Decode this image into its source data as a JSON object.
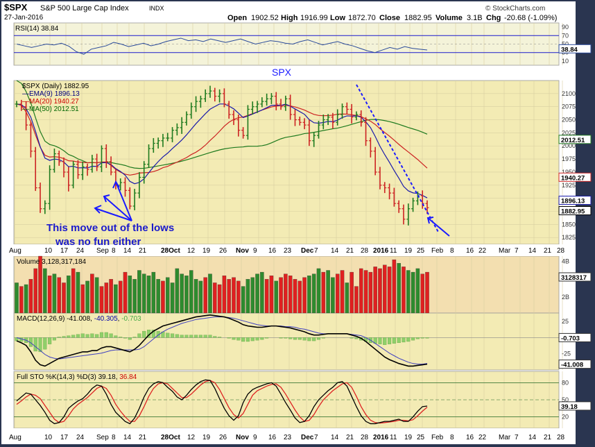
{
  "chart_data": {
    "type": "candlestick",
    "header": {
      "symbol": "$SPX",
      "name": "S&P 500 Large Cap Index",
      "exchange": "INDX",
      "date": "27-Jan-2016",
      "open_label": "Open",
      "open": "1902.52",
      "high_label": "High",
      "high": "1916.99",
      "low_label": "Low",
      "low": "1872.70",
      "close_label": "Close",
      "close": "1882.95",
      "volume_label": "Volume",
      "volume": "3.1B",
      "chg_label": "Chg",
      "chg": "-20.68 (-1.09%)",
      "brand": "© StockCharts.com"
    },
    "x_axis": {
      "labels": [
        "Aug",
        "10",
        "17",
        "24",
        "Sep",
        "8",
        "14",
        "21",
        "28Oct",
        "12",
        "19",
        "26",
        "Nov",
        "9",
        "16",
        "23",
        "Dec",
        "7",
        "14",
        "21",
        "28",
        "2016",
        "11",
        "19",
        "25",
        "Feb",
        "8",
        "16",
        "22",
        "Mar",
        "7",
        "14",
        "21",
        "28"
      ],
      "bold": [
        "28Oct",
        "Nov",
        "Dec",
        "2016"
      ],
      "label_x": [
        13,
        64,
        87,
        110,
        139,
        161,
        178,
        200,
        232,
        270,
        292,
        316,
        340,
        365,
        387,
        409,
        434,
        453,
        477,
        499,
        520,
        538,
        562,
        583,
        601,
        622,
        649,
        672,
        690,
        719,
        742,
        762,
        784,
        803
      ]
    },
    "rsi": {
      "label": "RSI(14)",
      "value": "38.84",
      "ticks": [
        "90",
        "70",
        "50",
        "30",
        "10"
      ],
      "tick_values": [
        90,
        70,
        50,
        30,
        10
      ],
      "levels": [
        70,
        30
      ],
      "tag": "38.84",
      "series": [
        50,
        46,
        42,
        46,
        50,
        48,
        52,
        45,
        32,
        26,
        38,
        42,
        46,
        54,
        50,
        44,
        48,
        52,
        46,
        50,
        56,
        60,
        64,
        58,
        60,
        56,
        62,
        58,
        54,
        58,
        62,
        56,
        50,
        54,
        58,
        56,
        52,
        50,
        56,
        60,
        54,
        48,
        52,
        56,
        50,
        46,
        40,
        34,
        30,
        36,
        42,
        38,
        44,
        40,
        38,
        36
      ]
    },
    "price": {
      "symbol_label": "$SPX (Daily)",
      "last": "1882.95",
      "overlay_text": "SPX",
      "ema9_label": "EMA(9)",
      "ema9": "1896.13",
      "ma20_label": "MA(20)",
      "ma20": "1940.27",
      "ma50_label": "MA(50)",
      "ma50": "2012.51",
      "ticks": [
        "2100",
        "2075",
        "2050",
        "2025",
        "2000",
        "1975",
        "1950",
        "1925",
        "1900",
        "1875",
        "1850",
        "1825"
      ],
      "tick_values": [
        2100,
        2075,
        2050,
        2025,
        2000,
        1975,
        1950,
        1925,
        1900,
        1875,
        1850,
        1825
      ],
      "ylim": [
        1812,
        2125
      ],
      "tags": [
        "2012.51",
        "1940.27",
        "1896.13",
        "1882.95"
      ],
      "tag_values": [
        2012.51,
        1940.27,
        1896.13,
        1882.95
      ],
      "annotation_line1": "This move out of the lows",
      "annotation_line2": "was no fun either",
      "closes": [
        2080,
        2075,
        2040,
        1990,
        1920,
        1880,
        1890,
        1955,
        1985,
        1970,
        1950,
        1925,
        1965,
        1945,
        1960,
        1955,
        1975,
        1960,
        1995,
        1970,
        1950,
        1925,
        1930,
        1915,
        1885,
        1910,
        1940,
        1965,
        1995,
        2005,
        2010,
        2015,
        2015,
        2030,
        2035,
        2045,
        2060,
        2075,
        2085,
        2090,
        2100,
        2105,
        2095,
        2100,
        2080,
        2060,
        2050,
        2030,
        2020,
        2070,
        2075,
        2080,
        2085,
        2090,
        2095,
        2080,
        2075,
        2090,
        2060,
        2050,
        2045,
        2040,
        2010,
        2020,
        2040,
        2050,
        2055,
        2045,
        2060,
        2075,
        2070,
        2055,
        2060,
        2045,
        2010,
        1990,
        1950,
        1925,
        1920,
        1910,
        1890,
        1880,
        1860,
        1880,
        1895,
        1905,
        1890,
        1882
      ]
    },
    "volume": {
      "label": "Volume",
      "value": "3,128,317,184",
      "ticks": [
        "4B",
        "3B",
        "2B"
      ],
      "tick_values": [
        4,
        3,
        2
      ],
      "ylim": [
        1.1,
        4.3
      ],
      "tag": "3128317",
      "series": [
        2.8,
        2.6,
        2.7,
        3.0,
        3.6,
        4.3,
        3.6,
        3.2,
        3.3,
        3.1,
        2.8,
        3.2,
        3.6,
        3.4,
        2.7,
        2.9,
        3.3,
        3.1,
        2.6,
        2.8,
        3.0,
        2.7,
        2.9,
        3.4,
        3.2,
        3.0,
        3.5,
        3.3,
        3.2,
        3.4,
        3.0,
        2.9,
        3.1,
        2.8,
        3.6,
        3.3,
        3.2,
        3.5,
        3.0,
        2.9,
        3.1,
        3.3,
        2.8,
        2.7,
        3.2,
        3.0,
        3.1,
        2.9,
        2.6,
        3.0,
        3.1,
        3.3,
        3.4,
        3.0,
        3.2,
        2.9,
        3.1,
        3.3,
        3.2,
        3.0,
        2.9,
        3.1,
        3.2,
        3.3,
        3.6,
        3.4,
        3.5,
        3.1,
        3.3,
        3.5,
        2.8,
        3.4,
        2.6,
        3.6,
        3.5,
        3.4,
        3.7,
        3.6,
        3.8,
        3.7,
        4.1,
        3.9,
        3.7,
        3.5,
        3.4,
        3.6,
        3.3,
        3.4
      ],
      "up": [
        true,
        false,
        true,
        false,
        false,
        false,
        true,
        false,
        true,
        false,
        false,
        true,
        false,
        true,
        false,
        true,
        false,
        true,
        false,
        false,
        false,
        true,
        false,
        false,
        true,
        true,
        true,
        true,
        true,
        true,
        true,
        false,
        true,
        true,
        true,
        true,
        true,
        true,
        true,
        true,
        false,
        true,
        false,
        false,
        false,
        false,
        false,
        false,
        true,
        true,
        true,
        true,
        true,
        false,
        false,
        true,
        false,
        false,
        false,
        false,
        false,
        false,
        true,
        true,
        true,
        false,
        true,
        true,
        false,
        false,
        true,
        false,
        false,
        false,
        false,
        false,
        false,
        false,
        false,
        false,
        false,
        true,
        false,
        true,
        true,
        true,
        false,
        false
      ]
    },
    "macd": {
      "label": "MACD(12,26,9)",
      "macd": "-41.008",
      "signal": "-40.305",
      "hist": "-0.703",
      "ticks": [
        "25",
        "0",
        "-25"
      ],
      "tick_values": [
        25,
        0,
        -25
      ],
      "ylim": [
        -50,
        38
      ],
      "tags": [
        "-0.703",
        "-41.008"
      ],
      "tag_values": [
        0,
        -41.008
      ],
      "macd_series": [
        -5,
        -8,
        -12,
        -22,
        -35,
        -42,
        -44,
        -40,
        -36,
        -32,
        -30,
        -28,
        -26,
        -24,
        -22,
        -22,
        -20,
        -20,
        -16,
        -14,
        -14,
        -16,
        -18,
        -20,
        -22,
        -18,
        -12,
        -4,
        4,
        10,
        14,
        18,
        20,
        22,
        24,
        26,
        28,
        30,
        32,
        33,
        34,
        35,
        34,
        33,
        32,
        30,
        27,
        24,
        20,
        18,
        17,
        16,
        16,
        17,
        18,
        18,
        17,
        16,
        15,
        13,
        11,
        9,
        6,
        4,
        4,
        5,
        6,
        6,
        6,
        6,
        6,
        4,
        2,
        -1,
        -6,
        -12,
        -18,
        -24,
        -30,
        -34,
        -37,
        -40,
        -42,
        -44,
        -44,
        -43,
        -42,
        -41
      ],
      "signal_series": [
        0,
        -2,
        -4,
        -8,
        -14,
        -20,
        -26,
        -30,
        -32,
        -33,
        -32,
        -31,
        -30,
        -29,
        -28,
        -27,
        -26,
        -25,
        -24,
        -22,
        -20,
        -19,
        -19,
        -19,
        -19,
        -19,
        -18,
        -14,
        -8,
        -2,
        4,
        9,
        13,
        16,
        19,
        22,
        24,
        26,
        28,
        29,
        30,
        31,
        32,
        32,
        32,
        31,
        30,
        28,
        26,
        24,
        22,
        20,
        19,
        18,
        18,
        18,
        18,
        17,
        17,
        16,
        14,
        13,
        11,
        9,
        7,
        6,
        6,
        6,
        6,
        6,
        6,
        5,
        4,
        3,
        0,
        -4,
        -9,
        -14,
        -19,
        -24,
        -28,
        -32,
        -35,
        -38,
        -40,
        -41,
        -41,
        -40
      ]
    },
    "sto": {
      "label": "Full STO %K(14,3) %D(3)",
      "k": "39.18",
      "d": "36.84",
      "ticks": [
        "80",
        "50",
        "20"
      ],
      "tick_values": [
        80,
        50,
        20
      ],
      "levels": [
        80,
        20
      ],
      "tag": "39.18",
      "k_series": [
        48,
        55,
        62,
        60,
        50,
        40,
        28,
        14,
        8,
        10,
        20,
        35,
        42,
        48,
        52,
        60,
        70,
        76,
        74,
        60,
        42,
        28,
        20,
        12,
        8,
        18,
        35,
        55,
        70,
        78,
        82,
        80,
        72,
        65,
        55,
        50,
        58,
        68,
        76,
        82,
        85,
        84,
        70,
        52,
        35,
        22,
        14,
        22,
        45,
        60,
        68,
        72,
        75,
        78,
        80,
        74,
        60,
        45,
        32,
        18,
        10,
        12,
        22,
        38,
        50,
        58,
        66,
        72,
        80,
        82,
        74,
        56,
        38,
        22,
        12,
        8,
        8,
        10,
        12,
        12,
        14,
        16,
        12,
        12,
        20,
        30,
        38,
        39
      ],
      "d_series": [
        42,
        48,
        55,
        60,
        58,
        52,
        40,
        28,
        16,
        10,
        12,
        22,
        34,
        42,
        48,
        54,
        62,
        70,
        74,
        70,
        58,
        42,
        30,
        20,
        12,
        12,
        22,
        38,
        56,
        70,
        78,
        80,
        78,
        70,
        62,
        54,
        54,
        60,
        68,
        76,
        82,
        84,
        80,
        68,
        52,
        36,
        24,
        18,
        26,
        42,
        58,
        66,
        70,
        74,
        77,
        78,
        72,
        60,
        46,
        32,
        20,
        12,
        14,
        24,
        38,
        50,
        58,
        66,
        72,
        78,
        80,
        72,
        56,
        38,
        24,
        14,
        10,
        9,
        10,
        11,
        12,
        14,
        14,
        13,
        15,
        22,
        30,
        37
      ]
    }
  }
}
